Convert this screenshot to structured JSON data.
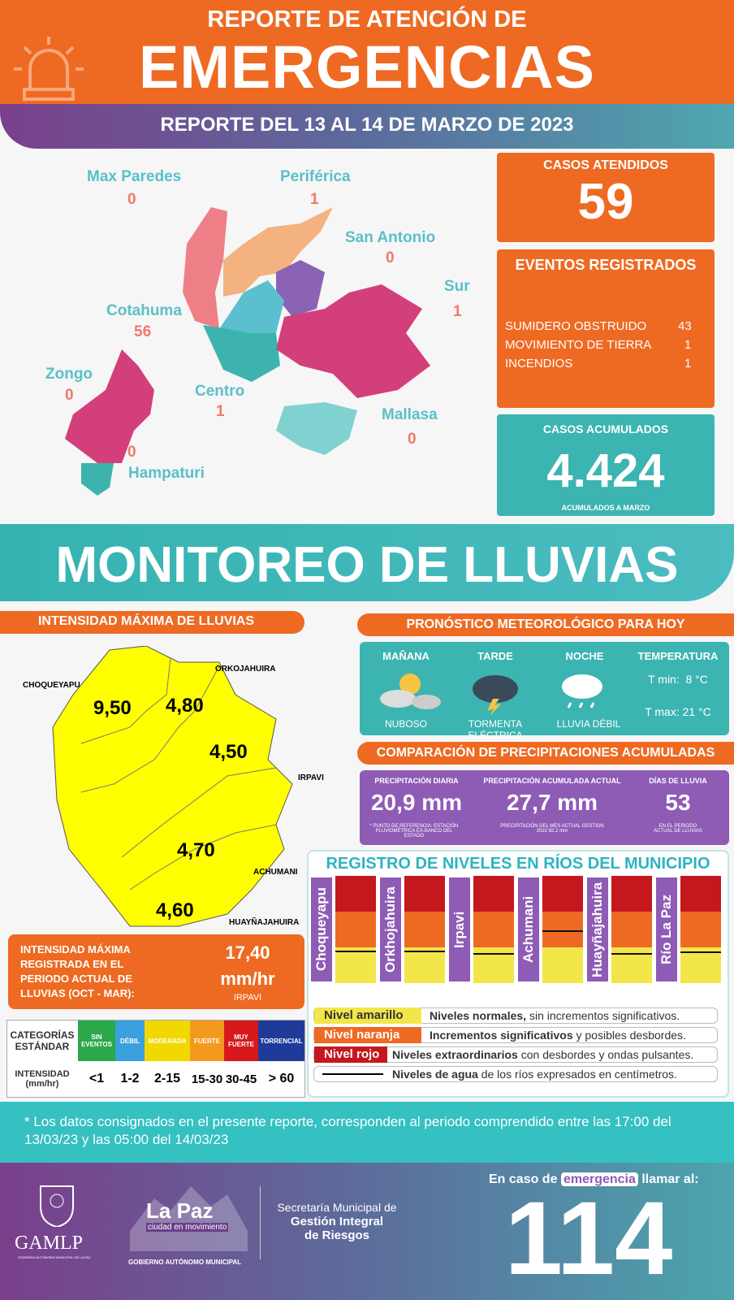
{
  "header": {
    "title_line1": "REPORTE DE ATENCIÓN DE",
    "title_line2": "EMERGENCIAS",
    "subtitle": "REPORTE DEL 13 AL 14 DE MARZO DE 2023"
  },
  "districts": [
    {
      "name": "Max Paredes",
      "cases": 0
    },
    {
      "name": "Periférica",
      "cases": 1
    },
    {
      "name": "San Antonio",
      "cases": 0
    },
    {
      "name": "Sur",
      "cases": 1
    },
    {
      "name": "Cotahuma",
      "cases": 56
    },
    {
      "name": "Zongo",
      "cases": 0
    },
    {
      "name": "Centro",
      "cases": 1
    },
    {
      "name": "Mallasa",
      "cases": 0
    },
    {
      "name": "Hampaturi",
      "cases": 0
    }
  ],
  "cases_attended": {
    "label": "CASOS ATENDIDOS",
    "value": 59
  },
  "events": {
    "title": "EVENTOS REGISTRADOS",
    "items": [
      {
        "label": "SUMIDERO OBSTRUIDO",
        "value": 43
      },
      {
        "label": "MOVIMIENTO DE TIERRA",
        "value": 1
      },
      {
        "label": "INCENDIOS",
        "value": 1
      }
    ]
  },
  "accumulated": {
    "label": "CASOS ACUMULADOS",
    "value": "4.424",
    "note": "ACUMULADOS A MARZO"
  },
  "monitoring_title": "MONITOREO DE LLUVIAS",
  "intensity": {
    "title": "INTENSIDAD MÁXIMA DE LLUVIAS",
    "basins": [
      {
        "name": "CHOQUEYAPU",
        "value": "9,50"
      },
      {
        "name": "ORKOJAHUIRA",
        "value": "4,80"
      },
      {
        "name": "IRPAVI",
        "value": "4,50"
      },
      {
        "name": "ACHUMANI",
        "value": "4,70"
      },
      {
        "name": "HUAYÑAJAHUIRA",
        "value": "4,60"
      }
    ],
    "max": {
      "label": "INTENSIDAD MÁXIMA REGISTRADA EN EL PERIODO ACTUAL DE LLUVIAS (OCT - MAR):",
      "value": "17,40",
      "unit": "mm/hr",
      "station": "IRPAVI"
    }
  },
  "categories_table": {
    "header": [
      "CATEGORÍAS ESTÁNDAR",
      "SIN EVENTOS",
      "DÉBIL",
      "MODERADA",
      "FUERTE",
      "MUY FUERTE",
      "TORRENCIAL"
    ],
    "row": [
      "INTENSIDAD (mm/hr)",
      "<1",
      "1-2",
      "2-15",
      "15-30",
      "30-45",
      "> 60"
    ]
  },
  "forecast": {
    "title": "PRONÓSTICO METEOROLÓGICO PARA HOY",
    "periods": [
      {
        "name": "MAÑANA",
        "condition": "NUBOSO"
      },
      {
        "name": "TARDE",
        "condition": "TORMENTA ELÉCTRICA"
      },
      {
        "name": "NOCHE",
        "condition": "LLUVIA DÉBIL"
      }
    ],
    "temperature": {
      "label": "TEMPERATURA",
      "min": "T min:  8 °C",
      "max": "T max: 21 °C"
    }
  },
  "precipitation": {
    "title": "COMPARACIÓN DE PRECIPITACIONES ACUMULADAS",
    "items": [
      {
        "label": "PRECIPITACIÓN DIARIA",
        "value": "20,9 mm",
        "note": "* PUNTO DE REFERENCIA: ESTACIÓN PLUVIOMÉTRICA EX-BANCO DEL ESTADO"
      },
      {
        "label": "PRECIPITACIÓN ACUMULADA ACTUAL",
        "value": "27,7 mm",
        "note": "PRECIPITACIÓN DEL MES ACTUAL GESTION 2022 82,2 mm"
      },
      {
        "label": "DÍAS DE LLUVIA",
        "value": 53,
        "note": "EN EL PERIODO ACTUAL DE LLUVIAS"
      }
    ]
  },
  "rivers": {
    "title": "REGISTRO DE NIVELES EN RÍOS DEL MUNICIPIO",
    "names": [
      "Choqueyapu",
      "Orkhojahuira",
      "Irpavi",
      "Achumani",
      "Huayñajahuira",
      "Río La Paz"
    ],
    "legend": [
      {
        "label": "Nivel amarillo",
        "bold": "Niveles normales,",
        "text": " sin incrementos significativos."
      },
      {
        "label": "Nivel naranja",
        "bold": "Incrementos significativos",
        "text": " y posibles desbordes."
      },
      {
        "label": "Nivel rojo",
        "bold": "Niveles extraordinarios",
        "text": " con desbordes y ondas pulsantes."
      },
      {
        "bold": "Niveles de agua",
        "text": " de los ríos expresados en centímetros."
      }
    ]
  },
  "footnote": "* Los datos consignados en el presente reporte, corresponden al periodo comprendido entre las 17:00 del 13/03/23 y las 05:00 del 14/03/23",
  "footer": {
    "org": "GAMLP",
    "org_sub": "GOBIERNO AUTÓNOMO MUNICIPAL DE LA PAZ",
    "city": "La Paz",
    "tagline": "ciudad en movimiento",
    "gov": "GOBIERNO AUTÓNOMO MUNICIPAL",
    "secretaria": [
      "Secretaría Municipal de",
      "Gestión Integral",
      "de Riesgos"
    ],
    "call": "En caso de",
    "call_highlight": "emergencia",
    "call_end": "llamar al:",
    "phone": 114
  }
}
